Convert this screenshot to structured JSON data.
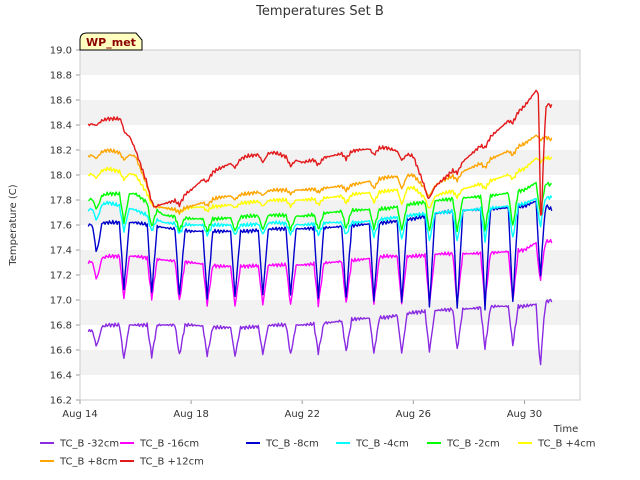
{
  "chart_data": {
    "type": "line",
    "title": "Temperatures Set B",
    "xlabel": "Time",
    "ylabel": "Temperature (C)",
    "badge": "WP_met",
    "x_range_days": [
      14,
      32
    ],
    "ylim": [
      16.2,
      19.0
    ],
    "grid": "horizontal bands",
    "legend_position": "bottom",
    "x_ticks": [
      {
        "day": 14,
        "label": "Aug 14"
      },
      {
        "day": 18,
        "label": "Aug 18"
      },
      {
        "day": 22,
        "label": "Aug 22"
      },
      {
        "day": 26,
        "label": "Aug 26"
      },
      {
        "day": 30,
        "label": "Aug 30"
      }
    ],
    "y_ticks": [
      "16.2",
      "16.4",
      "16.6",
      "16.8",
      "17.0",
      "17.2",
      "17.4",
      "17.6",
      "17.8",
      "18.0",
      "18.2",
      "18.4",
      "18.6",
      "18.8",
      "19.0"
    ],
    "series": [
      {
        "name": "TC_B -32cm",
        "color": "#8a2be2",
        "x": [
          14.3,
          15,
          16,
          17,
          18,
          19,
          20,
          21,
          22,
          23,
          24,
          25,
          26,
          27,
          28,
          29,
          30,
          30.5,
          31
        ],
        "upper": [
          16.75,
          16.8,
          16.8,
          16.8,
          16.8,
          16.78,
          16.78,
          16.8,
          16.8,
          16.82,
          16.85,
          16.86,
          16.9,
          16.92,
          16.93,
          16.95,
          16.95,
          16.97,
          17.0
        ],
        "lower": [
          16.72,
          16.5,
          16.55,
          16.55,
          16.56,
          16.55,
          16.55,
          16.58,
          16.55,
          16.6,
          16.58,
          16.57,
          16.58,
          16.6,
          16.6,
          16.62,
          16.65,
          16.38,
          17.0
        ]
      },
      {
        "name": "TC_B -16cm",
        "color": "#ff00ff",
        "x": [
          14.3,
          15,
          16,
          17,
          18,
          19,
          20,
          21,
          22,
          23,
          24,
          25,
          26,
          27,
          28,
          29,
          30,
          30.5,
          31
        ],
        "upper": [
          17.3,
          17.35,
          17.35,
          17.32,
          17.3,
          17.27,
          17.27,
          17.28,
          17.28,
          17.3,
          17.32,
          17.35,
          17.35,
          17.37,
          17.37,
          17.38,
          17.4,
          17.47,
          17.47
        ],
        "lower": [
          17.28,
          17.0,
          17.02,
          17.0,
          16.98,
          16.95,
          16.95,
          16.97,
          16.95,
          16.97,
          16.97,
          16.97,
          16.97,
          16.97,
          16.97,
          16.98,
          17.0,
          17.1,
          17.45
        ]
      },
      {
        "name": "TC_B -8cm",
        "color": "#0000cd",
        "x": [
          14.3,
          15,
          16,
          17,
          18,
          19,
          20,
          21,
          22,
          23,
          24,
          25,
          26,
          27,
          28,
          29,
          30,
          30.5,
          31
        ],
        "upper": [
          17.6,
          17.62,
          17.62,
          17.58,
          17.55,
          17.55,
          17.55,
          17.57,
          17.57,
          17.58,
          17.6,
          17.62,
          17.65,
          17.7,
          17.72,
          17.73,
          17.75,
          17.8,
          17.72
        ],
        "lower": [
          17.58,
          17.1,
          17.08,
          17.05,
          17.02,
          17.02,
          17.03,
          17.05,
          17.03,
          17.02,
          17.0,
          17.0,
          16.97,
          16.93,
          16.92,
          16.95,
          17.0,
          17.1,
          17.7
        ]
      },
      {
        "name": "TC_B -4cm",
        "color": "#00ffff",
        "x": [
          14.3,
          15,
          16,
          17,
          18,
          19,
          20,
          21,
          22,
          23,
          24,
          25,
          26,
          27,
          28,
          29,
          30,
          30.5,
          31
        ],
        "upper": [
          17.72,
          17.78,
          17.72,
          17.62,
          17.6,
          17.6,
          17.6,
          17.62,
          17.6,
          17.62,
          17.62,
          17.65,
          17.68,
          17.7,
          17.72,
          17.74,
          17.77,
          17.82,
          17.82
        ],
        "lower": [
          17.7,
          17.55,
          17.55,
          17.55,
          17.52,
          17.52,
          17.52,
          17.53,
          17.52,
          17.52,
          17.52,
          17.5,
          17.48,
          17.47,
          17.47,
          17.48,
          17.5,
          17.55,
          17.8
        ]
      },
      {
        "name": "TC_B -2cm",
        "color": "#00ff00",
        "x": [
          14.3,
          15,
          16,
          17,
          18,
          19,
          20,
          21,
          22,
          23,
          24,
          25,
          26,
          27,
          28,
          29,
          30,
          30.5,
          31
        ],
        "upper": [
          17.8,
          17.85,
          17.85,
          17.68,
          17.65,
          17.65,
          17.67,
          17.68,
          17.67,
          17.7,
          17.72,
          17.73,
          17.77,
          17.8,
          17.82,
          17.84,
          17.88,
          17.95,
          17.92
        ],
        "lower": [
          17.78,
          17.65,
          17.6,
          17.57,
          17.55,
          17.55,
          17.55,
          17.57,
          17.56,
          17.57,
          17.57,
          17.57,
          17.55,
          17.55,
          17.55,
          17.57,
          17.6,
          17.65,
          17.9
        ]
      },
      {
        "name": "TC_B +4cm",
        "color": "#ffff00",
        "x": [
          14.3,
          15,
          16,
          16.7,
          17.5,
          18,
          19,
          20,
          21,
          22,
          23,
          24,
          25,
          26,
          26.5,
          27,
          28,
          29,
          30,
          30.5,
          31
        ],
        "upper": [
          18.0,
          18.05,
          18.0,
          17.75,
          17.72,
          17.74,
          17.75,
          17.78,
          17.8,
          17.8,
          17.82,
          17.85,
          17.87,
          17.9,
          17.8,
          17.85,
          17.9,
          17.97,
          18.05,
          18.15,
          18.13
        ],
        "lower": [
          17.97,
          17.98,
          17.95,
          17.73,
          17.7,
          17.7,
          17.72,
          17.75,
          17.75,
          17.75,
          17.77,
          17.78,
          17.78,
          17.75,
          17.72,
          17.78,
          17.85,
          17.92,
          18.0,
          18.1,
          18.12
        ]
      },
      {
        "name": "TC_B +8cm",
        "color": "#ffa500",
        "x": [
          14.3,
          15,
          16,
          16.7,
          17.5,
          18,
          19,
          20,
          21,
          22,
          23,
          24,
          25,
          26,
          26.5,
          27,
          28,
          29,
          30,
          30.5,
          31
        ],
        "upper": [
          18.15,
          18.2,
          18.15,
          17.75,
          17.72,
          17.75,
          17.82,
          17.85,
          17.88,
          17.88,
          17.9,
          17.93,
          17.98,
          18.0,
          17.87,
          17.95,
          18.05,
          18.15,
          18.25,
          18.33,
          18.28
        ],
        "lower": [
          18.12,
          18.15,
          18.1,
          17.72,
          17.7,
          17.72,
          17.78,
          17.82,
          17.85,
          17.85,
          17.87,
          17.88,
          17.9,
          17.88,
          17.82,
          17.9,
          18.0,
          18.1,
          18.2,
          18.28,
          18.27
        ]
      },
      {
        "name": "TC_B +12cm",
        "color": "#e31a1c",
        "x": [
          14.3,
          15,
          15.5,
          16,
          16.7,
          17.5,
          18,
          18.6,
          19,
          20,
          21,
          22,
          23,
          24,
          25,
          26,
          26.5,
          27,
          28,
          29,
          30,
          30.5,
          30.6,
          30.8,
          31
        ],
        "upper": [
          18.4,
          18.45,
          18.45,
          18.2,
          17.75,
          17.8,
          17.88,
          18.0,
          18.05,
          18.15,
          18.18,
          18.1,
          18.15,
          18.2,
          18.22,
          18.15,
          17.85,
          17.95,
          18.15,
          18.35,
          18.55,
          18.7,
          18.2,
          18.57,
          18.55
        ],
        "lower": [
          18.38,
          18.42,
          18.4,
          18.1,
          17.72,
          17.75,
          17.82,
          17.95,
          18.0,
          18.1,
          18.1,
          18.05,
          18.1,
          18.15,
          18.17,
          18.08,
          17.8,
          17.9,
          18.1,
          18.3,
          18.5,
          18.6,
          17.45,
          18.5,
          18.53
        ]
      }
    ]
  }
}
